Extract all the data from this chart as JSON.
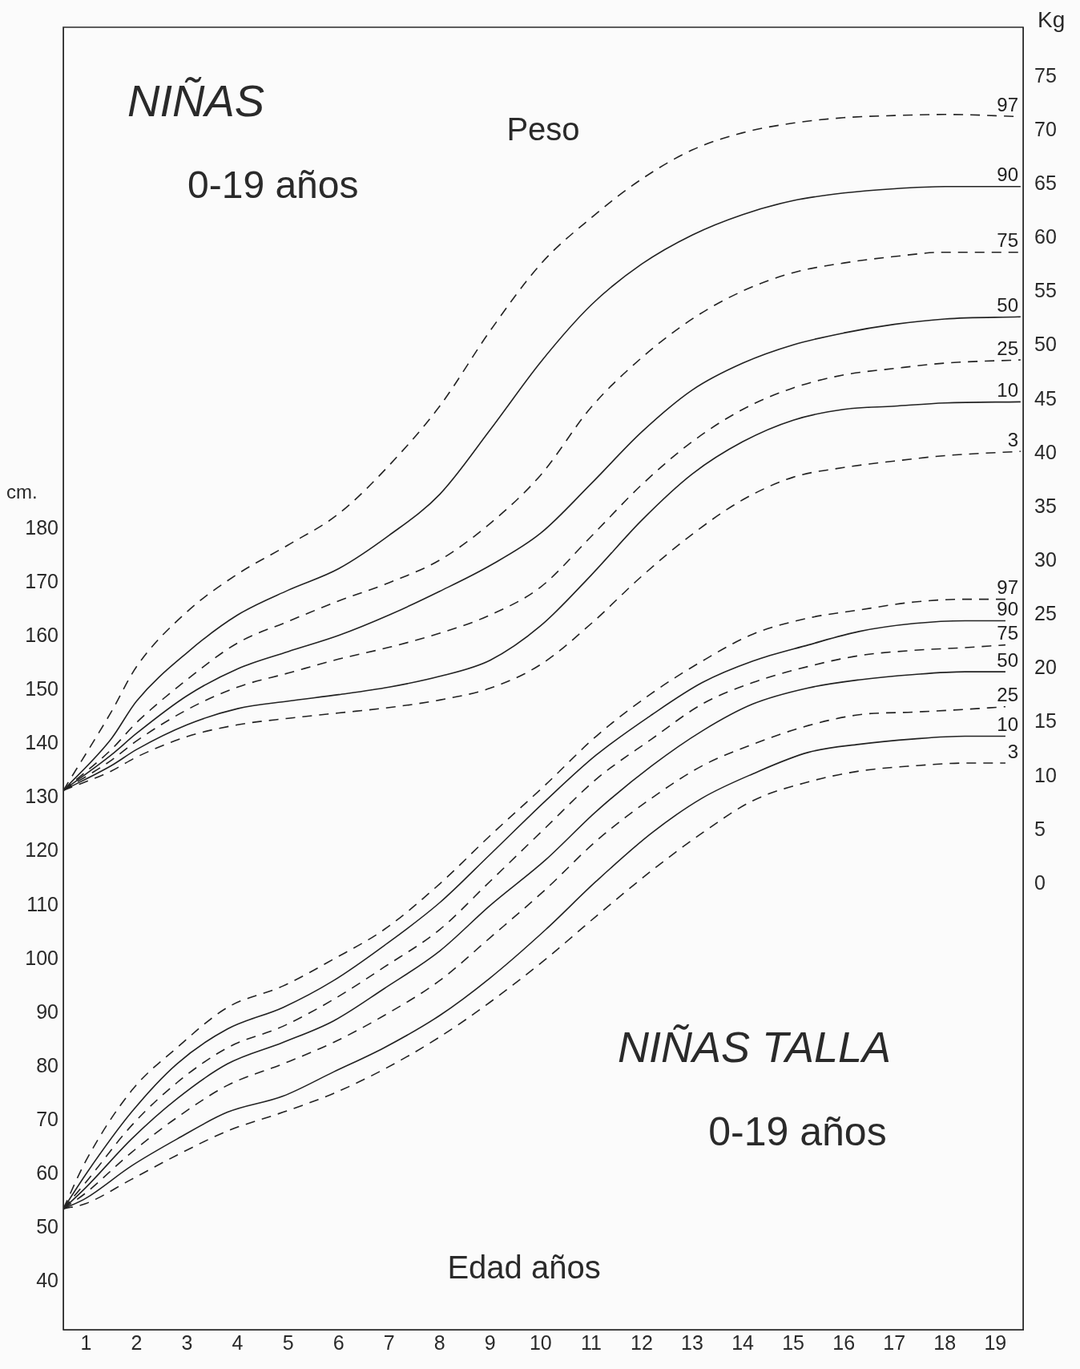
{
  "chart_data": {
    "type": "line",
    "title": "NIÑAS",
    "subtitle": "0-19 años",
    "xlabel": "Edad años",
    "ylabel": "cm.",
    "y2label": "Kg",
    "annotations": [
      "Peso",
      "NIÑAS TALLA",
      "0-19 años"
    ],
    "xlim": [
      0.55,
      19.55
    ],
    "xticks": [
      1,
      2,
      3,
      4,
      5,
      6,
      7,
      8,
      9,
      10,
      11,
      12,
      13,
      14,
      15,
      16,
      17,
      18,
      19
    ],
    "ylim": [
      31,
      273.5
    ],
    "yticks": [
      40,
      50,
      60,
      70,
      80,
      90,
      100,
      110,
      120,
      130,
      140,
      150,
      160,
      170,
      180
    ],
    "y2lim": [
      -41.4,
      79.6
    ],
    "y2ticks": [
      0,
      5,
      10,
      15,
      20,
      25,
      30,
      35,
      40,
      45,
      50,
      55,
      60,
      65,
      70,
      75
    ],
    "grid": false,
    "legend": false,
    "marker": "none",
    "series": [
      {
        "name": "97",
        "color": "#222222",
        "axis": "y2",
        "line_style": "dashed",
        "x": [
          0.55,
          1.5,
          2,
          3,
          4,
          5,
          6,
          7,
          8,
          9,
          10,
          11,
          12,
          13,
          14,
          15,
          16,
          17,
          18,
          19.5
        ],
        "values": [
          8.7,
          16,
          20.2,
          25.3,
          28.8,
          31.5,
          34.4,
          38.9,
          44.4,
          51.4,
          57.6,
          61.9,
          65.5,
          68.2,
          69.8,
          70.7,
          71.2,
          71.4,
          71.5,
          71.3
        ]
      },
      {
        "name": "90",
        "color": "#222222",
        "axis": "y2",
        "line_style": "solid",
        "x": [
          0.55,
          1.5,
          2,
          3,
          4,
          5,
          6,
          7,
          8,
          9,
          10,
          11,
          12,
          13,
          14,
          15,
          16,
          17,
          18,
          19.5
        ],
        "values": [
          8.7,
          13.5,
          17,
          21.5,
          25,
          27.3,
          29.3,
          32.4,
          36.2,
          42.2,
          48.5,
          53.8,
          57.6,
          60.3,
          62.2,
          63.5,
          64.2,
          64.6,
          64.8,
          64.8
        ]
      },
      {
        "name": "75",
        "color": "#222222",
        "axis": "y2",
        "line_style": "dashed",
        "x": [
          0.55,
          1.5,
          2,
          3,
          4,
          5,
          6,
          7,
          8,
          9,
          10,
          11,
          12,
          13,
          14,
          15,
          16,
          17,
          18,
          19.5
        ],
        "values": [
          8.7,
          12.5,
          15,
          19,
          22.4,
          24.4,
          26.3,
          28,
          30.1,
          33.5,
          38,
          44.3,
          48.9,
          52.5,
          55.1,
          56.8,
          57.7,
          58.3,
          58.7,
          58.7
        ]
      },
      {
        "name": "50",
        "color": "#222222",
        "axis": "y2",
        "line_style": "solid",
        "x": [
          0.55,
          1.5,
          2,
          3,
          4,
          5,
          6,
          7,
          8,
          9,
          10,
          11,
          12,
          13,
          14,
          15,
          16,
          17,
          18,
          19.5
        ],
        "values": [
          8.7,
          12,
          14,
          17.5,
          20,
          21.6,
          23.1,
          25,
          27.2,
          29.6,
          32.6,
          37.2,
          42,
          45.9,
          48.4,
          50.1,
          51.2,
          52,
          52.5,
          52.7
        ]
      },
      {
        "name": "25",
        "color": "#222222",
        "axis": "y2",
        "line_style": "dashed",
        "x": [
          0.55,
          1.5,
          2,
          3,
          4,
          5,
          6,
          7,
          8,
          9,
          10,
          11,
          12,
          13,
          14,
          15,
          16,
          17,
          18,
          19.5
        ],
        "values": [
          8.7,
          11.5,
          13.3,
          16.2,
          18.3,
          19.6,
          20.9,
          22,
          23.3,
          25,
          27.6,
          32.3,
          37.1,
          41.1,
          44.1,
          46.1,
          47.3,
          47.9,
          48.4,
          48.7
        ]
      },
      {
        "name": "10",
        "color": "#222222",
        "axis": "y2",
        "line_style": "solid",
        "x": [
          0.55,
          1.5,
          2,
          3,
          4,
          5,
          6,
          7,
          8,
          9,
          10,
          11,
          12,
          13,
          14,
          15,
          16,
          17,
          18,
          19.5
        ],
        "values": [
          8.7,
          11,
          12.5,
          14.8,
          16.3,
          17,
          17.6,
          18.3,
          19.3,
          20.8,
          24,
          28.7,
          33.8,
          38.1,
          41.1,
          43.1,
          44.1,
          44.4,
          44.7,
          44.8
        ]
      },
      {
        "name": "3",
        "color": "#222222",
        "axis": "y2",
        "line_style": "dashed",
        "x": [
          0.55,
          1.5,
          2,
          3,
          4,
          5,
          6,
          7,
          8,
          9,
          10,
          11,
          12,
          13,
          14,
          15,
          16,
          17,
          18,
          19.5
        ],
        "values": [
          8.7,
          10.5,
          11.8,
          13.7,
          14.8,
          15.4,
          15.9,
          16.4,
          17.1,
          18.2,
          20.4,
          24.2,
          28.6,
          32.5,
          35.7,
          37.8,
          38.7,
          39.3,
          39.8,
          40.2
        ]
      },
      {
        "name": "97",
        "color": "#222222",
        "axis": "y",
        "line_style": "dashed",
        "x": [
          0.55,
          1,
          1.9,
          2.8,
          3.8,
          4.9,
          5.9,
          6.9,
          8,
          9,
          10.1,
          11.1,
          12.2,
          13.2,
          14.2,
          15.3,
          16.3,
          17.4,
          18.4,
          19.2
        ],
        "values": [
          53.5,
          62.5,
          75.5,
          83.5,
          91,
          95,
          100,
          105.5,
          114,
          123,
          132.5,
          141.5,
          149.5,
          155.5,
          160.5,
          163.5,
          165,
          166.5,
          167,
          167
        ]
      },
      {
        "name": "90",
        "color": "#222222",
        "axis": "y",
        "line_style": "solid",
        "x": [
          0.55,
          1,
          1.9,
          2.8,
          3.8,
          4.9,
          5.9,
          6.9,
          8,
          9,
          10.1,
          11.1,
          12.2,
          13.2,
          14.2,
          15.3,
          16.3,
          17.4,
          18.4,
          19.2
        ],
        "values": [
          53.5,
          60,
          71.5,
          80.5,
          87,
          91,
          96,
          102.5,
          110.5,
          119.5,
          129.5,
          138,
          145.5,
          151.5,
          155.5,
          158.5,
          161,
          162.5,
          163,
          163
        ]
      },
      {
        "name": "75",
        "color": "#222222",
        "axis": "y",
        "line_style": "dashed",
        "x": [
          0.55,
          1,
          1.9,
          2.8,
          3.8,
          4.9,
          5.9,
          6.9,
          8,
          9,
          10.1,
          11.1,
          12.2,
          13.2,
          14.2,
          15.3,
          16.3,
          17.4,
          18.4,
          19.2
        ],
        "values": [
          53.5,
          58.5,
          69,
          77,
          83.5,
          87.5,
          92.5,
          98.5,
          105.5,
          114.5,
          124.5,
          133.5,
          141,
          147.5,
          151.5,
          154.5,
          156.5,
          157.5,
          158,
          158.5
        ]
      },
      {
        "name": "50",
        "color": "#222222",
        "axis": "y",
        "line_style": "solid",
        "x": [
          0.55,
          1,
          1.9,
          2.8,
          3.8,
          4.9,
          5.9,
          6.9,
          8,
          9,
          10.1,
          11.1,
          12.2,
          13.2,
          14.2,
          15.3,
          16.3,
          17.4,
          18.4,
          19.2
        ],
        "values": [
          53.5,
          57.5,
          66.5,
          74,
          80.5,
          84.5,
          88.5,
          94.5,
          101.5,
          110,
          118.5,
          127.5,
          136,
          142.5,
          147.5,
          150.5,
          152,
          153,
          153.5,
          153.5
        ]
      },
      {
        "name": "25",
        "color": "#222222",
        "axis": "y",
        "line_style": "dashed",
        "x": [
          0.55,
          1,
          1.9,
          2.8,
          3.8,
          4.9,
          5.9,
          6.9,
          8,
          9,
          10.1,
          11.1,
          12.2,
          13.2,
          14.2,
          15.3,
          16.3,
          17.4,
          18.4,
          19.2
        ],
        "values": [
          53.5,
          56.5,
          64,
          70.5,
          76.5,
          80.5,
          84.5,
          89.5,
          96,
          104,
          113,
          122,
          130,
          136,
          140,
          143.5,
          145.5,
          146,
          146.5,
          147
        ]
      },
      {
        "name": "10",
        "color": "#222222",
        "axis": "y",
        "line_style": "solid",
        "x": [
          0.55,
          1,
          1.9,
          2.8,
          3.8,
          4.9,
          5.9,
          6.9,
          8,
          9,
          10.1,
          11.1,
          12.2,
          13.2,
          14.2,
          15.3,
          16.3,
          17.4,
          18.4,
          19.2
        ],
        "values": [
          53.5,
          55.5,
          61.5,
          66.5,
          71.5,
          74.5,
          79,
          83.5,
          89.5,
          96.5,
          105.5,
          114.5,
          123.5,
          130,
          134.5,
          138.5,
          140,
          141,
          141.5,
          141.5
        ]
      },
      {
        "name": "3",
        "color": "#222222",
        "axis": "y",
        "line_style": "dashed",
        "x": [
          0.55,
          1,
          1.9,
          2.8,
          3.8,
          4.9,
          5.9,
          6.9,
          8,
          9,
          10.1,
          11.1,
          12.2,
          13.2,
          14.2,
          15.3,
          16.3,
          17.4,
          18.4,
          19.2
        ],
        "values": [
          53.5,
          54.5,
          59,
          63.5,
          68,
          71.5,
          75,
          79.5,
          85.5,
          92,
          100,
          108,
          116.5,
          123.5,
          129.5,
          133,
          135,
          136,
          136.5,
          136.5
        ]
      }
    ]
  }
}
